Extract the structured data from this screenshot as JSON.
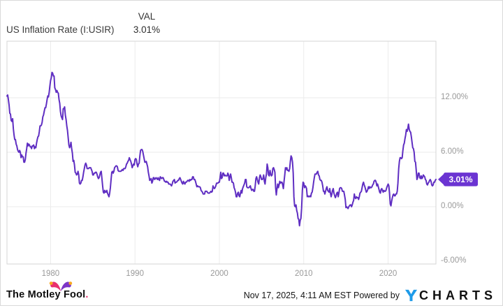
{
  "header": {
    "title": "US Inflation Rate (I:USIR)",
    "val_label": "VAL",
    "val_value": "3.01%"
  },
  "chart_data": {
    "type": "line",
    "title": "US Inflation Rate (I:USIR)",
    "xlabel": "",
    "ylabel": "",
    "grid": true,
    "legend_position": "none",
    "ylim": [
      -6.3,
      18.2
    ],
    "x_range": [
      "1974-11",
      "2025-09"
    ],
    "colors": {
      "grid": "#ebebeb",
      "plot_border": "#d5d5d5",
      "axis_text": "#999999"
    },
    "badge": {
      "text": "3.01%",
      "color": "#6b34d2",
      "text_color": "#ffffff"
    },
    "y_ticks": [
      {
        "value": 12,
        "label": "12.00%",
        "gridline": true
      },
      {
        "value": 6,
        "label": "6.00%",
        "gridline": true
      },
      {
        "value": 0,
        "label": "0.00%",
        "gridline": true
      },
      {
        "value": -6,
        "label": "-6.00%",
        "gridline": false
      }
    ],
    "x_ticks": [
      {
        "year": 1980,
        "label": "1980"
      },
      {
        "year": 1990,
        "label": "1990"
      },
      {
        "year": 2000,
        "label": "2000"
      },
      {
        "year": 2010,
        "label": "2010"
      },
      {
        "year": 2020,
        "label": "2020"
      }
    ],
    "series": [
      {
        "name": "US Inflation Rate",
        "unit": "%",
        "color": "#5f2ec2",
        "frequency": "monthly",
        "start": {
          "year": 1974,
          "month": 11
        },
        "values": [
          12.2,
          12.3,
          11.8,
          11.2,
          10.3,
          10.2,
          9.5,
          9.4,
          9.7,
          8.6,
          7.9,
          7.4,
          7.4,
          6.9,
          6.7,
          6.3,
          6.1,
          6.0,
          6.2,
          6.0,
          5.4,
          5.7,
          5.5,
          5.5,
          4.9,
          4.9,
          5.2,
          5.9,
          6.4,
          7.0,
          6.7,
          6.9,
          6.8,
          6.6,
          6.6,
          6.4,
          6.7,
          6.7,
          6.8,
          6.4,
          6.6,
          6.5,
          7.0,
          7.4,
          7.7,
          7.8,
          8.3,
          8.9,
          8.9,
          9.0,
          9.3,
          9.9,
          10.1,
          10.5,
          10.9,
          10.9,
          11.3,
          11.8,
          12.2,
          12.1,
          12.6,
          13.3,
          13.9,
          14.2,
          14.8,
          14.7,
          14.4,
          14.4,
          13.1,
          12.9,
          12.6,
          12.8,
          12.6,
          12.5,
          11.8,
          11.4,
          10.5,
          10.0,
          9.8,
          9.6,
          10.8,
          10.8,
          11.0,
          10.1,
          9.6,
          8.9,
          8.4,
          7.6,
          6.8,
          6.5,
          6.7,
          7.1,
          6.4,
          5.9,
          5.0,
          5.1,
          4.6,
          3.8,
          3.7,
          3.5,
          3.6,
          3.9,
          3.5,
          2.6,
          2.5,
          2.6,
          2.9,
          2.9,
          3.3,
          3.8,
          4.2,
          4.6,
          4.8,
          4.6,
          4.2,
          4.2,
          4.2,
          4.3,
          4.3,
          4.3,
          4.1,
          3.9,
          3.5,
          3.5,
          3.7,
          3.7,
          3.8,
          3.8,
          3.6,
          3.3,
          3.1,
          3.2,
          3.5,
          3.8,
          3.9,
          3.1,
          2.3,
          1.6,
          1.5,
          1.8,
          1.6,
          1.6,
          1.8,
          1.5,
          1.3,
          1.1,
          1.5,
          2.1,
          3.0,
          3.8,
          3.9,
          3.7,
          3.9,
          4.3,
          4.4,
          4.5,
          4.5,
          4.4,
          4.0,
          3.9,
          3.9,
          3.9,
          3.9,
          4.0,
          4.1,
          4.0,
          4.2,
          4.2,
          4.2,
          4.4,
          4.7,
          4.8,
          5.0,
          5.1,
          5.4,
          5.2,
          5.0,
          4.7,
          4.3,
          4.5,
          4.7,
          4.6,
          5.2,
          5.3,
          5.2,
          4.7,
          4.4,
          4.7,
          4.8,
          5.6,
          6.2,
          6.3,
          6.3,
          6.1,
          5.7,
          5.3,
          4.9,
          4.9,
          5.0,
          4.7,
          4.4,
          3.8,
          3.4,
          2.9,
          3.0,
          3.1,
          2.6,
          2.8,
          3.2,
          3.2,
          3.0,
          3.1,
          3.2,
          3.1,
          3.0,
          3.2,
          3.0,
          2.9,
          3.3,
          3.2,
          3.1,
          3.2,
          3.2,
          3.0,
          2.8,
          2.8,
          2.7,
          2.8,
          2.7,
          2.7,
          2.5,
          2.5,
          2.5,
          2.4,
          2.3,
          2.5,
          2.8,
          2.9,
          3.0,
          2.6,
          2.7,
          2.7,
          2.8,
          2.9,
          2.9,
          3.1,
          3.2,
          3.0,
          2.8,
          2.6,
          2.5,
          2.8,
          2.6,
          2.5,
          2.7,
          2.7,
          2.8,
          2.9,
          2.9,
          2.8,
          3.0,
          2.9,
          3.0,
          3.0,
          3.3,
          3.3,
          3.0,
          3.0,
          2.8,
          2.5,
          2.2,
          2.3,
          2.2,
          2.2,
          2.2,
          2.1,
          1.8,
          1.7,
          1.6,
          1.4,
          1.4,
          1.4,
          1.7,
          1.7,
          1.7,
          1.6,
          1.5,
          1.5,
          1.5,
          1.6,
          1.7,
          1.6,
          1.7,
          2.3,
          2.1,
          2.0,
          2.1,
          2.3,
          2.6,
          2.6,
          2.6,
          2.7,
          2.7,
          3.2,
          3.8,
          3.1,
          3.2,
          3.7,
          3.7,
          3.4,
          3.5,
          3.4,
          3.4,
          3.4,
          3.7,
          3.5,
          2.9,
          3.3,
          3.6,
          3.2,
          2.7,
          2.7,
          2.6,
          2.1,
          1.9,
          1.6,
          1.1,
          1.1,
          1.5,
          1.6,
          1.2,
          1.1,
          1.5,
          1.8,
          1.5,
          2.0,
          2.2,
          2.4,
          2.6,
          3.0,
          3.0,
          2.2,
          2.1,
          2.1,
          2.1,
          2.2,
          2.3,
          2.0,
          1.8,
          1.9,
          1.9,
          1.7,
          1.7,
          2.3,
          3.1,
          3.3,
          3.0,
          2.7,
          2.5,
          3.2,
          3.5,
          3.3,
          3.0,
          3.0,
          3.1,
          3.5,
          2.8,
          2.5,
          3.2,
          3.6,
          4.7,
          4.3,
          3.5,
          3.4,
          4.0,
          3.6,
          3.4,
          3.5,
          4.2,
          4.3,
          4.1,
          3.8,
          2.1,
          1.3,
          2.0,
          2.5,
          2.1,
          2.4,
          2.8,
          2.6,
          2.7,
          2.7,
          2.4,
          2.0,
          2.8,
          3.5,
          4.3,
          4.1,
          4.3,
          4.0,
          4.0,
          3.9,
          4.2,
          5.0,
          5.6,
          5.4,
          4.9,
          3.7,
          1.1,
          0.1,
          0.0,
          0.2,
          -0.4,
          -0.7,
          -1.3,
          -1.4,
          -2.1,
          -1.5,
          -1.3,
          -0.2,
          1.8,
          2.7,
          2.6,
          2.1,
          2.3,
          2.2,
          2.0,
          1.1,
          1.2,
          1.1,
          1.1,
          1.2,
          1.1,
          1.5,
          1.6,
          2.1,
          2.7,
          3.2,
          3.6,
          3.6,
          3.6,
          3.8,
          3.9,
          3.5,
          3.4,
          3.0,
          2.9,
          2.9,
          2.7,
          2.3,
          1.7,
          1.7,
          1.4,
          1.7,
          2.0,
          2.2,
          1.8,
          1.7,
          1.6,
          2.0,
          1.5,
          1.1,
          1.4,
          1.8,
          2.0,
          1.5,
          1.2,
          1.0,
          1.2,
          1.5,
          1.6,
          1.1,
          1.5,
          2.0,
          2.1,
          2.1,
          2.0,
          1.7,
          1.7,
          1.7,
          1.3,
          0.8,
          -0.1,
          0.0,
          -0.1,
          -0.2,
          0.0,
          0.1,
          0.2,
          0.2,
          0.0,
          0.2,
          0.5,
          0.7,
          1.4,
          1.0,
          0.9,
          1.1,
          1.0,
          1.0,
          0.8,
          1.1,
          1.5,
          1.6,
          1.7,
          2.1,
          2.5,
          2.7,
          2.4,
          2.2,
          1.9,
          1.6,
          1.7,
          1.9,
          2.2,
          2.0,
          2.2,
          2.1,
          2.1,
          2.2,
          2.4,
          2.5,
          2.8,
          2.9,
          2.9,
          2.7,
          2.3,
          2.5,
          2.2,
          1.9,
          1.6,
          1.5,
          1.9,
          2.0,
          1.8,
          1.6,
          1.8,
          1.7,
          1.7,
          1.8,
          2.1,
          2.3,
          2.5,
          2.3,
          1.5,
          0.3,
          0.1,
          0.6,
          1.0,
          1.3,
          1.4,
          1.2,
          1.2,
          1.4,
          1.4,
          1.7,
          2.6,
          4.2,
          5.0,
          5.4,
          5.4,
          5.3,
          5.4,
          6.2,
          6.8,
          7.0,
          7.5,
          7.9,
          8.5,
          8.3,
          8.6,
          9.1,
          8.5,
          8.3,
          8.2,
          7.7,
          7.1,
          6.5,
          6.4,
          6.0,
          5.0,
          4.9,
          4.0,
          3.0,
          3.2,
          3.7,
          3.7,
          3.2,
          3.1,
          3.4,
          3.1,
          3.2,
          3.5,
          3.4,
          3.3,
          3.0,
          2.9,
          2.5,
          2.4,
          2.6,
          2.7,
          2.9,
          3.0,
          2.8,
          2.4,
          2.3,
          2.4,
          2.7,
          2.7,
          2.9,
          3.01
        ]
      }
    ]
  },
  "footer": {
    "brand": {
      "text": "The Motley Fool",
      "period": "."
    },
    "timestamp": "Nov 17, 2025, 4:11 AM EST",
    "powered_by": "Powered by",
    "ycharts": {
      "y": "Y",
      "rest": "CHARTS",
      "blue": "#1e9be9"
    }
  }
}
